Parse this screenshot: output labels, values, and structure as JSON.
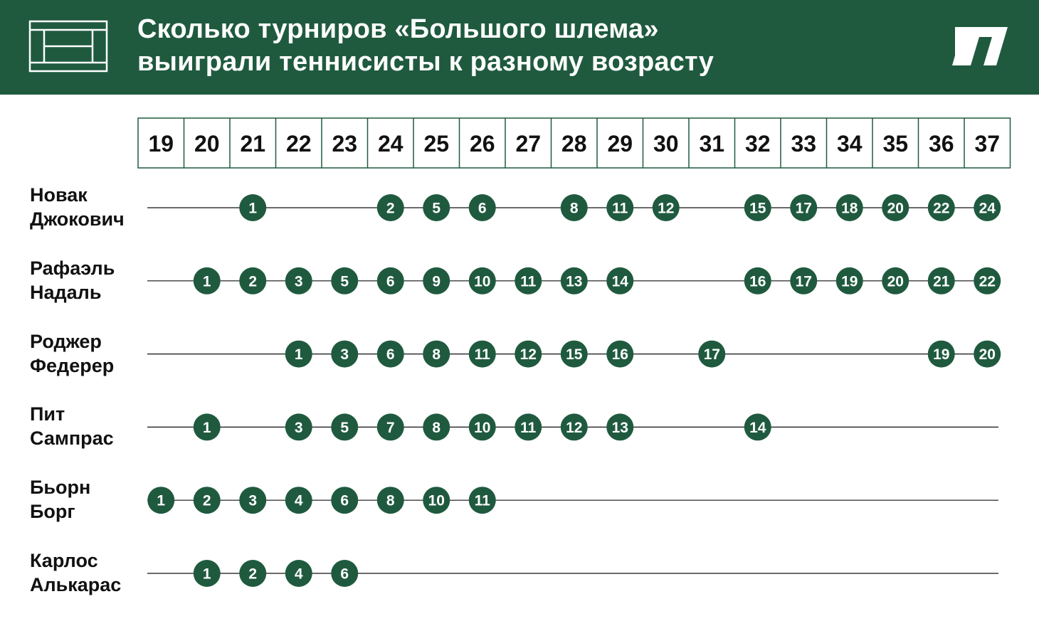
{
  "header": {
    "title_line1": "Сколько турниров «Большого шлема»",
    "title_line2": "выиграли теннисисты к разному возрасту",
    "background_color": "#1f5a3f",
    "left_icon": "tennis-court-icon",
    "right_icon": "publisher-logo-icon"
  },
  "colors": {
    "accent": "#1f5a3f",
    "text": "#111111",
    "line": "#111111"
  },
  "chart_data": {
    "type": "dot-timeline",
    "xlabel": "",
    "ylabel": "",
    "ages": [
      19,
      20,
      21,
      22,
      23,
      24,
      25,
      26,
      27,
      28,
      29,
      30,
      31,
      32,
      33,
      34,
      35,
      36,
      37
    ],
    "series": [
      {
        "first_name": "Новак",
        "last_name": "Джокович",
        "line_start_age": 19,
        "line_end_age": 37,
        "points": [
          {
            "age": 21,
            "value": 1
          },
          {
            "age": 24,
            "value": 2
          },
          {
            "age": 25,
            "value": 5
          },
          {
            "age": 26,
            "value": 6
          },
          {
            "age": 28,
            "value": 8
          },
          {
            "age": 29,
            "value": 11
          },
          {
            "age": 30,
            "value": 12
          },
          {
            "age": 32,
            "value": 15
          },
          {
            "age": 33,
            "value": 17
          },
          {
            "age": 34,
            "value": 18
          },
          {
            "age": 35,
            "value": 20
          },
          {
            "age": 36,
            "value": 22
          },
          {
            "age": 37,
            "value": 24
          }
        ]
      },
      {
        "first_name": "Рафаэль",
        "last_name": "Надаль",
        "line_start_age": 19,
        "line_end_age": 37,
        "points": [
          {
            "age": 20,
            "value": 1
          },
          {
            "age": 21,
            "value": 2
          },
          {
            "age": 22,
            "value": 3
          },
          {
            "age": 23,
            "value": 5
          },
          {
            "age": 24,
            "value": 6
          },
          {
            "age": 25,
            "value": 9
          },
          {
            "age": 26,
            "value": 10
          },
          {
            "age": 27,
            "value": 11
          },
          {
            "age": 28,
            "value": 13
          },
          {
            "age": 29,
            "value": 14
          },
          {
            "age": 32,
            "value": 16
          },
          {
            "age": 33,
            "value": 17
          },
          {
            "age": 34,
            "value": 19
          },
          {
            "age": 35,
            "value": 20
          },
          {
            "age": 36,
            "value": 21
          },
          {
            "age": 37,
            "value": 22
          }
        ]
      },
      {
        "first_name": "Роджер",
        "last_name": "Федерер",
        "line_start_age": 19,
        "line_end_age": 37,
        "points": [
          {
            "age": 22,
            "value": 1
          },
          {
            "age": 23,
            "value": 3
          },
          {
            "age": 24,
            "value": 6
          },
          {
            "age": 25,
            "value": 8
          },
          {
            "age": 26,
            "value": 11
          },
          {
            "age": 27,
            "value": 12
          },
          {
            "age": 28,
            "value": 15
          },
          {
            "age": 29,
            "value": 16
          },
          {
            "age": 31,
            "value": 17
          },
          {
            "age": 36,
            "value": 19
          },
          {
            "age": 37,
            "value": 20
          }
        ]
      },
      {
        "first_name": "Пит",
        "last_name": "Сампрас",
        "line_start_age": 19,
        "line_end_age": 37,
        "points": [
          {
            "age": 20,
            "value": 1
          },
          {
            "age": 22,
            "value": 3
          },
          {
            "age": 23,
            "value": 5
          },
          {
            "age": 24,
            "value": 7
          },
          {
            "age": 25,
            "value": 8
          },
          {
            "age": 26,
            "value": 10
          },
          {
            "age": 27,
            "value": 11
          },
          {
            "age": 28,
            "value": 12
          },
          {
            "age": 29,
            "value": 13
          },
          {
            "age": 32,
            "value": 14
          }
        ]
      },
      {
        "first_name": "Бьорн",
        "last_name": "Борг",
        "line_start_age": 19,
        "line_end_age": 37,
        "points": [
          {
            "age": 19,
            "value": 1
          },
          {
            "age": 20,
            "value": 2
          },
          {
            "age": 21,
            "value": 3
          },
          {
            "age": 22,
            "value": 4
          },
          {
            "age": 23,
            "value": 6
          },
          {
            "age": 24,
            "value": 8
          },
          {
            "age": 25,
            "value": 10
          },
          {
            "age": 26,
            "value": 11
          }
        ]
      },
      {
        "first_name": "Карлос",
        "last_name": "Алькарас",
        "line_start_age": 19,
        "line_end_age": 37,
        "points": [
          {
            "age": 20,
            "value": 1
          },
          {
            "age": 21,
            "value": 2
          },
          {
            "age": 22,
            "value": 4
          },
          {
            "age": 23,
            "value": 6
          }
        ]
      }
    ]
  }
}
